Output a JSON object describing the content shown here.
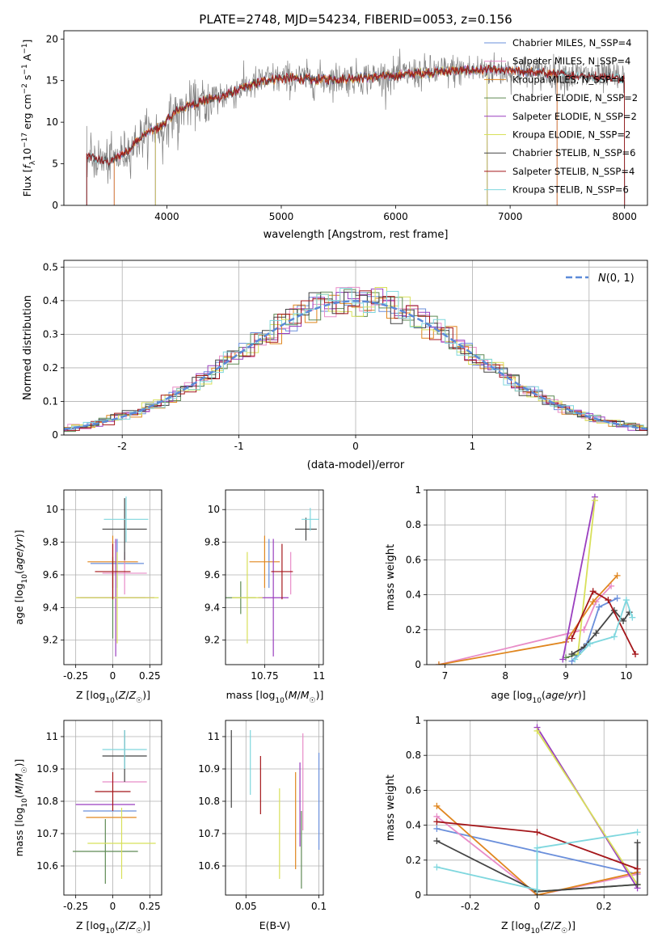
{
  "figure_title": "PLATE=2748, MJD=54234, FIBERID=0053, z=0.156",
  "colors": {
    "Chabrier MILES": "#6a8fdb",
    "Salpeter MILES": "#e88cc8",
    "Kroupa MILES": "#e0861f",
    "Chabrier ELODIE": "#5f8a55",
    "Salpeter ELODIE": "#9a3fbf",
    "Kroupa ELODIE": "#d8e05a",
    "Chabrier STELIB": "#444444",
    "Salpeter STELIB": "#a4161a",
    "Kroupa STELIB": "#7fd7de",
    "data": "#808080",
    "normal": "#5b8ad8"
  },
  "chart_data": [
    {
      "id": "spectrum",
      "type": "line",
      "title": "PLATE=2748, MJD=54234, FIBERID=0053, z=0.156",
      "xlabel": "wavelength [Angstrom, rest frame]",
      "ylabel": "Flux [f_λ 10^-17 erg cm^-2 s^-1 A^-1]",
      "xlim": [
        3100,
        8200
      ],
      "ylim": [
        0,
        21
      ],
      "xticks": [
        4000,
        5000,
        6000,
        7000,
        8000
      ],
      "yticks": [
        0,
        5,
        10,
        15,
        20
      ],
      "legend_position": "top-right",
      "legend": [
        "Chabrier MILES, N_SSP=4",
        "Salpeter MILES, N_SSP=4",
        "Kroupa MILES, N_SSP=4",
        "Chabrier ELODIE, N_SSP=2",
        "Salpeter ELODIE, N_SSP=2",
        "Kroupa ELODIE, N_SSP=2",
        "Chabrier STELIB, N_SSP=6",
        "Salpeter STELIB, N_SSP=4",
        "Kroupa STELIB, N_SSP=6"
      ],
      "continuum": {
        "x": [
          3300,
          3400,
          3500,
          3650,
          3800,
          3950,
          4100,
          4300,
          4500,
          4700,
          4900,
          5100,
          5300,
          5600,
          5900,
          6200,
          6500,
          6800,
          7100,
          7400,
          7700,
          8000
        ],
        "y": [
          6,
          5.5,
          5.2,
          6.5,
          8.5,
          9.5,
          11.5,
          12.5,
          13.2,
          14.3,
          15.2,
          15.3,
          15.1,
          15.3,
          15.5,
          15.9,
          16.2,
          16.3,
          16.1,
          15.8,
          15.5,
          15.3
        ]
      },
      "model_ranges": {
        "MILES": [
          3540,
          7410
        ],
        "ELODIE": [
          3900,
          6800
        ],
        "STELIB": [
          3300,
          8000
        ]
      }
    },
    {
      "id": "residuals",
      "type": "line",
      "xlabel": "(data-model)/error",
      "ylabel": "Normed distribution",
      "xlim": [
        -2.5,
        2.5
      ],
      "ylim": [
        0,
        0.52
      ],
      "xticks": [
        -2,
        -1,
        0,
        1,
        2
      ],
      "yticks": [
        0.0,
        0.1,
        0.2,
        0.3,
        0.4,
        0.5
      ],
      "legend_position": "top-right",
      "legend": [
        "N(0,1)"
      ]
    },
    {
      "id": "age_vs_Z",
      "type": "scatter",
      "xlabel": "Z [log10(Z/Z☉)]",
      "ylabel": "age [log10(age/yr)]",
      "xlim": [
        -0.33,
        0.33
      ],
      "ylim": [
        9.05,
        10.12
      ],
      "xticks": [
        -0.25,
        0.0,
        0.25
      ],
      "yticks": [
        9.2,
        9.4,
        9.6,
        9.8,
        10.0
      ],
      "points": [
        {
          "model": "Chabrier MILES",
          "x": 0.03,
          "y": 9.67,
          "xerr": 0.18,
          "yerr": 0.15
        },
        {
          "model": "Salpeter MILES",
          "x": 0.08,
          "y": 9.61,
          "xerr": 0.15,
          "yerr": 0.13
        },
        {
          "model": "Kroupa MILES",
          "x": 0.0,
          "y": 9.68,
          "xerr": 0.17,
          "yerr": 0.16
        },
        {
          "model": "Chabrier ELODIE",
          "x": 0.0,
          "y": 9.46,
          "xerr": 0.22,
          "yerr": 0.25
        },
        {
          "model": "Salpeter ELODIE",
          "x": 0.02,
          "y": 9.46,
          "xerr": 0.26,
          "yerr": 0.36
        },
        {
          "model": "Kroupa ELODIE",
          "x": 0.03,
          "y": 9.46,
          "xerr": 0.28,
          "yerr": 0.28
        },
        {
          "model": "Chabrier STELIB",
          "x": 0.08,
          "y": 9.88,
          "xerr": 0.15,
          "yerr": 0.19
        },
        {
          "model": "Salpeter STELIB",
          "x": 0.0,
          "y": 9.62,
          "xerr": 0.12,
          "yerr": 0.17
        },
        {
          "model": "Kroupa STELIB",
          "x": 0.09,
          "y": 9.94,
          "xerr": 0.15,
          "yerr": 0.14
        }
      ]
    },
    {
      "id": "age_vs_mass",
      "type": "scatter",
      "xlabel": "mass [log10(M/M☉)]",
      "ylabel": "",
      "xlim": [
        10.57,
        11.02
      ],
      "ylim": [
        9.05,
        10.12
      ],
      "xticks": [
        10.75,
        11.0
      ],
      "yticks": [
        9.2,
        9.4,
        9.6,
        9.8,
        10.0
      ],
      "points": [
        {
          "model": "Chabrier MILES",
          "x": 10.77,
          "y": 9.67,
          "xerr": 0.0,
          "yerr": 0.15
        },
        {
          "model": "Salpeter MILES",
          "x": 10.87,
          "y": 9.61,
          "xerr": 0.0,
          "yerr": 0.13
        },
        {
          "model": "Kroupa MILES",
          "x": 10.75,
          "y": 9.68,
          "xerr": 0.07,
          "yerr": 0.16
        },
        {
          "model": "Chabrier ELODIE",
          "x": 10.64,
          "y": 9.46,
          "xerr": 0.07,
          "yerr": 0.1
        },
        {
          "model": "Salpeter ELODIE",
          "x": 10.79,
          "y": 9.46,
          "xerr": 0.07,
          "yerr": 0.36
        },
        {
          "model": "Kroupa ELODIE",
          "x": 10.67,
          "y": 9.46,
          "xerr": 0.07,
          "yerr": 0.28
        },
        {
          "model": "Chabrier STELIB",
          "x": 10.94,
          "y": 9.88,
          "xerr": 0.05,
          "yerr": 0.07
        },
        {
          "model": "Salpeter STELIB",
          "x": 10.83,
          "y": 9.62,
          "xerr": 0.05,
          "yerr": 0.17
        },
        {
          "model": "Kroupa STELIB",
          "x": 10.96,
          "y": 9.94,
          "xerr": 0.04,
          "yerr": 0.07
        }
      ]
    },
    {
      "id": "weight_vs_age",
      "type": "line",
      "xlabel": "age [log10(age/yr)]",
      "ylabel": "mass weight",
      "xlim": [
        6.7,
        10.35
      ],
      "ylim": [
        0,
        1
      ],
      "xticks": [
        7,
        8,
        9,
        10
      ],
      "yticks": [
        0.0,
        0.2,
        0.4,
        0.6,
        0.8,
        1.0
      ],
      "series": [
        {
          "name": "Chabrier MILES",
          "x": [
            9.1,
            9.35,
            9.55,
            9.85
          ],
          "y": [
            0.02,
            0.12,
            0.33,
            0.38
          ]
        },
        {
          "name": "Salpeter MILES",
          "x": [
            6.9,
            9.3,
            9.5,
            9.75
          ],
          "y": [
            0.0,
            0.2,
            0.36,
            0.45
          ]
        },
        {
          "name": "Kroupa MILES",
          "x": [
            6.9,
            9.0,
            9.45,
            9.85
          ],
          "y": [
            0.0,
            0.13,
            0.36,
            0.51
          ]
        },
        {
          "name": "Chabrier ELODIE",
          "x": [
            9.0,
            9.2
          ],
          "y": [
            0.04,
            0.06
          ]
        },
        {
          "name": "Salpeter ELODIE",
          "x": [
            8.95,
            9.48
          ],
          "y": [
            0.03,
            0.96
          ]
        },
        {
          "name": "Kroupa ELODIE",
          "x": [
            9.2,
            9.48
          ],
          "y": [
            0.06,
            0.94
          ]
        },
        {
          "name": "Chabrier STELIB",
          "x": [
            9.1,
            9.3,
            9.5,
            9.8,
            9.95,
            10.05
          ],
          "y": [
            0.06,
            0.1,
            0.18,
            0.31,
            0.25,
            0.3
          ]
        },
        {
          "name": "Salpeter STELIB",
          "x": [
            9.1,
            9.45,
            9.7,
            10.15
          ],
          "y": [
            0.15,
            0.42,
            0.37,
            0.06
          ]
        },
        {
          "name": "Kroupa STELIB",
          "x": [
            9.15,
            9.4,
            9.8,
            10.0,
            10.1
          ],
          "y": [
            0.03,
            0.12,
            0.16,
            0.37,
            0.27
          ]
        }
      ]
    },
    {
      "id": "mass_vs_Z",
      "type": "scatter",
      "xlabel": "Z [log10(Z/Z☉)]",
      "ylabel": "mass [log10(M/M☉)]",
      "xlim": [
        -0.33,
        0.33
      ],
      "ylim": [
        10.51,
        11.05
      ],
      "xticks": [
        -0.25,
        0.0,
        0.25
      ],
      "yticks": [
        10.6,
        10.7,
        10.8,
        10.9,
        11.0
      ],
      "points": [
        {
          "model": "Chabrier MILES",
          "x": -0.02,
          "y": 10.77,
          "xerr": 0.18,
          "yerr": 0.0
        },
        {
          "model": "Salpeter MILES",
          "x": 0.08,
          "y": 10.86,
          "xerr": 0.15,
          "yerr": 0.0
        },
        {
          "model": "Kroupa MILES",
          "x": -0.01,
          "y": 10.75,
          "xerr": 0.17,
          "yerr": 0.0
        },
        {
          "model": "Chabrier ELODIE",
          "x": -0.05,
          "y": 10.645,
          "xerr": 0.22,
          "yerr": 0.1
        },
        {
          "model": "Salpeter ELODIE",
          "x": -0.05,
          "y": 10.79,
          "xerr": 0.2,
          "yerr": 0.0
        },
        {
          "model": "Kroupa ELODIE",
          "x": 0.06,
          "y": 10.67,
          "xerr": 0.23,
          "yerr": 0.11
        },
        {
          "model": "Chabrier STELIB",
          "x": 0.08,
          "y": 10.94,
          "xerr": 0.15,
          "yerr": 0.08
        },
        {
          "model": "Salpeter STELIB",
          "x": 0.0,
          "y": 10.83,
          "xerr": 0.12,
          "yerr": 0.06
        },
        {
          "model": "Kroupa STELIB",
          "x": 0.08,
          "y": 10.96,
          "xerr": 0.15,
          "yerr": 0.06
        }
      ]
    },
    {
      "id": "mass_vs_EBV",
      "type": "scatter",
      "xlabel": "E(B-V)",
      "ylabel": "",
      "xlim": [
        0.036,
        0.103
      ],
      "ylim": [
        10.51,
        11.05
      ],
      "xticks": [
        0.05,
        0.1
      ],
      "yticks": [
        10.6,
        10.7,
        10.8,
        10.9,
        11.0
      ],
      "points": [
        {
          "model": "Chabrier STELIB",
          "x": 0.04,
          "y": 10.9,
          "yerr": 0.12
        },
        {
          "model": "Kroupa STELIB",
          "x": 0.053,
          "y": 10.92,
          "yerr": 0.1
        },
        {
          "model": "Salpeter STELIB",
          "x": 0.06,
          "y": 10.85,
          "yerr": 0.09
        },
        {
          "model": "Kroupa ELODIE",
          "x": 0.073,
          "y": 10.7,
          "yerr": 0.14
        },
        {
          "model": "Kroupa MILES",
          "x": 0.084,
          "y": 10.74,
          "yerr": 0.15
        },
        {
          "model": "Salpeter ELODIE",
          "x": 0.087,
          "y": 10.79,
          "yerr": 0.13
        },
        {
          "model": "Chabrier ELODIE",
          "x": 0.088,
          "y": 10.65,
          "yerr": 0.12
        },
        {
          "model": "Salpeter MILES",
          "x": 0.089,
          "y": 10.86,
          "yerr": 0.15
        },
        {
          "model": "Chabrier MILES",
          "x": 0.1,
          "y": 10.8,
          "yerr": 0.15
        }
      ]
    },
    {
      "id": "weight_vs_Z",
      "type": "line",
      "xlabel": "Z [log10(Z/Z☉)]",
      "ylabel": "mass weight",
      "xlim": [
        -0.33,
        0.33
      ],
      "ylim": [
        0,
        1
      ],
      "xticks": [
        -0.2,
        0.0,
        0.2
      ],
      "yticks": [
        0.0,
        0.2,
        0.4,
        0.6,
        0.8,
        1.0
      ],
      "series": [
        {
          "name": "Chabrier MILES",
          "x": [
            -0.3,
            0.0,
            0.3
          ],
          "y": [
            0.38,
            0.25,
            0.12
          ]
        },
        {
          "name": "Salpeter MILES",
          "x": [
            -0.3,
            0.0,
            0.3
          ],
          "y": [
            0.45,
            0.0,
            0.12
          ]
        },
        {
          "name": "Kroupa MILES",
          "x": [
            -0.3,
            0.0,
            0.3
          ],
          "y": [
            0.51,
            0.0,
            0.13
          ]
        },
        {
          "name": "Chabrier ELODIE",
          "x": [
            0.0,
            0.3
          ],
          "y": [
            0.02,
            0.06
          ]
        },
        {
          "name": "Salpeter ELODIE",
          "x": [
            0.0,
            0.3
          ],
          "y": [
            0.96,
            0.04
          ]
        },
        {
          "name": "Kroupa ELODIE",
          "x": [
            0.0,
            0.3
          ],
          "y": [
            0.94,
            0.06
          ]
        },
        {
          "name": "Chabrier STELIB",
          "x": [
            -0.3,
            0.0,
            0.3,
            0.3
          ],
          "y": [
            0.31,
            0.02,
            0.06,
            0.3
          ]
        },
        {
          "name": "Salpeter STELIB",
          "x": [
            -0.3,
            0.0,
            0.3
          ],
          "y": [
            0.42,
            0.36,
            0.15
          ]
        },
        {
          "name": "Kroupa STELIB",
          "x": [
            -0.3,
            0.0,
            0.0,
            0.3
          ],
          "y": [
            0.16,
            0.03,
            0.27,
            0.36
          ]
        }
      ]
    }
  ]
}
